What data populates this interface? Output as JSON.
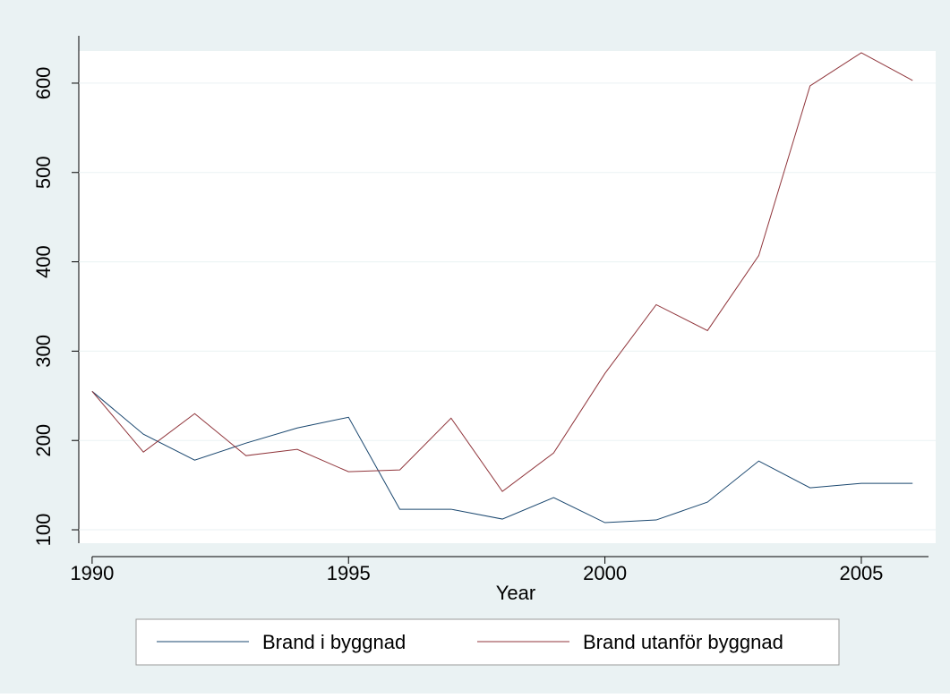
{
  "chart_data": {
    "type": "line",
    "x_label": "Year",
    "x": [
      1990,
      1991,
      1992,
      1993,
      1994,
      1995,
      1996,
      1997,
      1998,
      1999,
      2000,
      2001,
      2002,
      2003,
      2004,
      2005,
      2006
    ],
    "series": [
      {
        "name": "Brand i byggnad",
        "color": "#1a476f",
        "values": [
          255,
          207,
          178,
          197,
          214,
          226,
          123,
          123,
          112,
          136,
          108,
          111,
          131,
          177,
          147,
          152,
          152
        ]
      },
      {
        "name": "Brand utanför byggnad",
        "color": "#90353b",
        "values": [
          255,
          187,
          230,
          183,
          190,
          165,
          167,
          225,
          143,
          186,
          275,
          352,
          323,
          407,
          597,
          634,
          603
        ]
      }
    ],
    "xlim": [
      1989.74,
      2006.45
    ],
    "xticks": [
      1990,
      1995,
      2000,
      2005
    ],
    "ylim": [
      85,
      636
    ],
    "yticks": [
      100,
      200,
      300,
      400,
      500,
      600
    ],
    "grid": true,
    "legend": "bottom"
  }
}
